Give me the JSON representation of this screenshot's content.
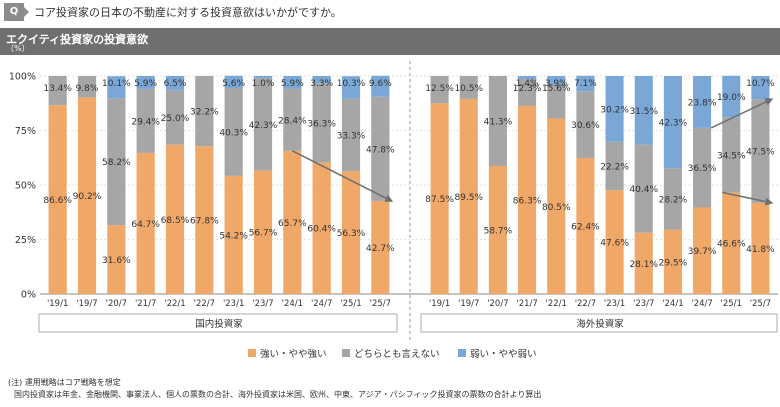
{
  "question": {
    "badge": "Q",
    "text": "コア投資家の日本の不動産に対する投資意欲はいかがですか。"
  },
  "header": {
    "title": "エクイティ投資家の投資意欲",
    "unit": "（%）"
  },
  "notes": {
    "line1": "(注) 運用戦略はコア戦略を想定",
    "line2": "国内投資家は年金、金融機関、事業法人、個人の票数の合計、海外投資家は米国、欧州、中東、アジア・パシフィック投資家の票数の合計より算出"
  },
  "colors": {
    "strong": "#f0a868",
    "neutral": "#a6a6a6",
    "weak": "#7aa7d6",
    "arrow": "#6f6f6f"
  },
  "chart_data": {
    "type": "bar",
    "stacked": true,
    "ylim": [
      0,
      100
    ],
    "yticks": [
      "0%",
      "25%",
      "50%",
      "75%",
      "100%"
    ],
    "legend": {
      "position": "bottom",
      "entries": [
        "強い・やや強い",
        "どちらとも言えない",
        "弱い・やや弱い"
      ]
    },
    "groups": [
      {
        "name": "国内投資家",
        "categories": [
          "'19/1",
          "'19/7",
          "'20/7",
          "'21/7",
          "'22/1",
          "'22/7",
          "'23/1",
          "'23/7",
          "'24/1",
          "'24/7",
          "'25/1",
          "'25/7"
        ],
        "series": [
          {
            "name": "強い・やや強い",
            "values": [
              86.6,
              90.2,
              31.6,
              64.7,
              68.5,
              67.8,
              54.2,
              56.7,
              65.7,
              60.4,
              56.3,
              42.7
            ]
          },
          {
            "name": "どちらとも言えない",
            "values": [
              13.4,
              9.8,
              58.2,
              29.4,
              25.0,
              32.2,
              40.3,
              42.3,
              28.4,
              36.3,
              33.3,
              47.8
            ]
          },
          {
            "name": "弱い・やや弱い",
            "values": [
              0,
              0,
              10.1,
              5.9,
              6.5,
              0,
              5.6,
              1.0,
              5.9,
              3.3,
              10.3,
              9.6
            ]
          }
        ],
        "labels": [
          [
            "86.6%",
            "90.2%",
            "31.6%",
            "64.7%",
            "68.5%",
            "67.8%",
            "54.2%",
            "56.7%",
            "65.7%",
            "60.4%",
            "56.3%",
            "42.7%"
          ],
          [
            "13.4%",
            "9.8%",
            "58.2%",
            "29.4%",
            "25.0%",
            "32.2%",
            "40.3%",
            "42.3%",
            "28.4%",
            "36.3%",
            "33.3%",
            "47.8%"
          ],
          [
            "",
            "",
            "10.1%",
            "5.9%",
            "6.5%",
            "",
            "5.6%",
            "1.0%",
            "5.9%",
            "3.3%",
            "10.3%",
            "9.6%"
          ]
        ]
      },
      {
        "name": "海外投資家",
        "categories": [
          "'19/1",
          "'19/7",
          "'20/7",
          "'21/7",
          "'22/1",
          "'22/7",
          "'23/1",
          "'23/7",
          "'24/1",
          "'24/7",
          "'25/1",
          "'25/7"
        ],
        "series": [
          {
            "name": "強い・やや強い",
            "values": [
              87.5,
              89.5,
              58.7,
              86.3,
              80.5,
              62.4,
              47.6,
              28.1,
              29.5,
              39.7,
              46.6,
              41.8
            ]
          },
          {
            "name": "どちらとも言えない",
            "values": [
              12.5,
              10.5,
              41.3,
              12.3,
              15.6,
              30.6,
              22.2,
              40.4,
              28.2,
              36.5,
              34.5,
              47.5
            ]
          },
          {
            "name": "弱い・やや弱い",
            "values": [
              0,
              0,
              0,
              1.4,
              3.9,
              7.1,
              30.2,
              31.5,
              42.3,
              23.8,
              19.0,
              10.7
            ]
          }
        ],
        "labels": [
          [
            "87.5%",
            "89.5%",
            "58.7%",
            "86.3%",
            "80.5%",
            "62.4%",
            "47.6%",
            "28.1%",
            "29.5%",
            "39.7%",
            "46.6%",
            "41.8%"
          ],
          [
            "12.5%",
            "10.5%",
            "41.3%",
            "12.3%",
            "15.6%",
            "30.6%",
            "22.2%",
            "40.4%",
            "28.2%",
            "36.5%",
            "34.5%",
            "47.5%"
          ],
          [
            "",
            "",
            "",
            "1.4%",
            "3.9%",
            "7.1%",
            "30.2%",
            "31.5%",
            "42.3%",
            "23.8%",
            "19.0%",
            "10.7%"
          ]
        ]
      }
    ]
  }
}
